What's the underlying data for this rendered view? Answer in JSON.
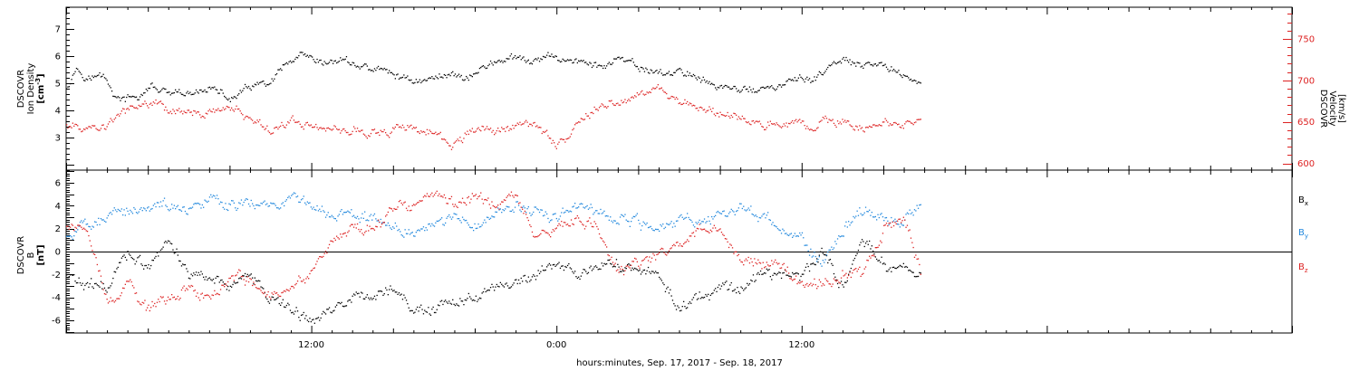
{
  "chart_data": [
    {
      "type": "scatter",
      "panel": "plasma",
      "left_axis": {
        "label_lines": [
          "DSCOVR",
          "Ion Density"
        ],
        "unit_base": "[cm",
        "unit_sup": "-3",
        "unit_end": "]",
        "ylim": [
          1.8,
          7.8
        ],
        "ticks": [
          "3",
          "4",
          "5",
          "6",
          "7"
        ],
        "color": "#000000"
      },
      "right_axis": {
        "label_lines": [
          "DSCOVR",
          "Velocity",
          "[km/s]"
        ],
        "ylim": [
          592,
          788
        ],
        "ticks": [
          "600",
          "650",
          "700",
          "750"
        ],
        "color": "#dd2222"
      },
      "series": [
        {
          "axis": "left",
          "color": "#000000",
          "knots": [
            [
              0,
              4.9
            ],
            [
              0.5,
              5.6
            ],
            [
              1,
              5.2
            ],
            [
              1.8,
              5.3
            ],
            [
              2.5,
              4.4
            ],
            [
              3.5,
              4.5
            ],
            [
              4.2,
              4.9
            ],
            [
              5,
              4.6
            ],
            [
              6.2,
              4.6
            ],
            [
              7,
              4.9
            ],
            [
              8,
              4.4
            ],
            [
              9,
              4.9
            ],
            [
              10,
              5
            ],
            [
              10.6,
              5.6
            ],
            [
              11.5,
              6.0
            ],
            [
              12.5,
              5.7
            ],
            [
              13.5,
              5.9
            ],
            [
              14.5,
              5.6
            ],
            [
              15.5,
              5.5
            ],
            [
              16.5,
              5.2
            ],
            [
              17.5,
              5.1
            ],
            [
              18.8,
              5.4
            ],
            [
              19.6,
              5.2
            ],
            [
              20.4,
              5.6
            ],
            [
              21.3,
              5.9
            ],
            [
              22,
              5.9
            ],
            [
              23,
              5.8
            ],
            [
              23.5,
              6.0
            ],
            [
              24.5,
              5.9
            ],
            [
              25.3,
              5.8
            ],
            [
              26,
              5.6
            ],
            [
              27,
              5.9
            ],
            [
              28,
              5.6
            ],
            [
              29,
              5.4
            ],
            [
              30.5,
              5.4
            ],
            [
              31.5,
              5.0
            ],
            [
              32.5,
              4.8
            ],
            [
              33.5,
              4.8
            ],
            [
              34.5,
              4.8
            ],
            [
              35.5,
              5.1
            ],
            [
              36.5,
              5.2
            ],
            [
              37,
              5.4
            ],
            [
              38,
              5.9
            ],
            [
              39,
              5.6
            ],
            [
              40,
              5.7
            ],
            [
              41,
              5.3
            ],
            [
              41.8,
              5.0
            ]
          ]
        },
        {
          "axis": "right",
          "color": "#dd2222",
          "knots": [
            [
              0,
              648
            ],
            [
              0.5,
              644
            ],
            [
              1,
              644
            ],
            [
              2,
              644
            ],
            [
              2.5,
              660
            ],
            [
              3.5,
              672
            ],
            [
              4,
              668
            ],
            [
              4.5,
              676
            ],
            [
              5,
              664
            ],
            [
              6.2,
              664
            ],
            [
              7,
              660
            ],
            [
              8,
              670
            ],
            [
              8.8,
              658
            ],
            [
              10,
              640
            ],
            [
              11,
              652
            ],
            [
              12,
              646
            ],
            [
              13,
              642
            ],
            [
              14,
              640
            ],
            [
              15,
              638
            ],
            [
              16,
              640
            ],
            [
              16.5,
              645
            ],
            [
              17.5,
              640
            ],
            [
              18,
              634
            ],
            [
              18.8,
              623
            ],
            [
              19.5,
              634
            ],
            [
              20.5,
              642
            ],
            [
              21.5,
              642
            ],
            [
              22.5,
              650
            ],
            [
              23,
              646
            ],
            [
              23.5,
              636
            ],
            [
              24,
              624
            ],
            [
              24.8,
              640
            ],
            [
              25.5,
              660
            ],
            [
              26,
              668
            ],
            [
              27,
              674
            ],
            [
              28,
              688
            ],
            [
              29,
              690
            ],
            [
              29.5,
              680
            ],
            [
              30,
              672
            ],
            [
              31,
              666
            ],
            [
              32,
              660
            ],
            [
              33,
              654
            ],
            [
              34,
              644
            ],
            [
              35,
              646
            ],
            [
              36,
              652
            ],
            [
              36.5,
              638
            ],
            [
              37,
              654
            ],
            [
              38,
              650
            ],
            [
              39,
              646
            ],
            [
              40,
              650
            ],
            [
              41,
              648
            ],
            [
              41.8,
              654
            ]
          ]
        }
      ]
    },
    {
      "type": "scatter",
      "panel": "magnetic-field",
      "left_axis": {
        "label_lines": [
          "DSCOVR",
          "B"
        ],
        "unit_base": "[nT",
        "unit_sup": "",
        "unit_end": "]",
        "ylim": [
          -7.1,
          7.1
        ],
        "ticks": [
          "-6",
          "-4",
          "-2",
          "0",
          "2",
          "4",
          "6"
        ],
        "color": "#000000"
      },
      "zero_line": 0,
      "series": [
        {
          "name": "B",
          "sub": "x",
          "color": "#000000",
          "knots": [
            [
              0,
              -2
            ],
            [
              1,
              -3
            ],
            [
              2,
              -3
            ],
            [
              3,
              0
            ],
            [
              4,
              -1.5
            ],
            [
              5,
              1
            ],
            [
              6,
              -2
            ],
            [
              7,
              -2
            ],
            [
              8,
              -3
            ],
            [
              9,
              -2
            ],
            [
              10,
              -4
            ],
            [
              11,
              -5
            ],
            [
              12,
              -6
            ],
            [
              13,
              -5
            ],
            [
              14,
              -4
            ],
            [
              15,
              -4
            ],
            [
              16,
              -3
            ],
            [
              17,
              -5
            ],
            [
              18,
              -5
            ],
            [
              19,
              -4.5
            ],
            [
              20,
              -4
            ],
            [
              21,
              -3
            ],
            [
              22,
              -3
            ],
            [
              23,
              -2
            ],
            [
              24,
              -1
            ],
            [
              25,
              -2
            ],
            [
              26,
              -1
            ],
            [
              27,
              -1
            ],
            [
              28,
              -2
            ],
            [
              29,
              -2
            ],
            [
              30,
              -5
            ],
            [
              31,
              -4
            ],
            [
              32,
              -3
            ],
            [
              33,
              -3
            ],
            [
              34,
              -2
            ],
            [
              35,
              -2
            ],
            [
              36,
              -2
            ],
            [
              37,
              0
            ],
            [
              38,
              -3
            ],
            [
              39,
              1
            ],
            [
              40,
              -1
            ],
            [
              41,
              -1.5
            ],
            [
              41.8,
              -2
            ]
          ]
        },
        {
          "name": "B",
          "sub": "y",
          "color": "#2288dd",
          "knots": [
            [
              0,
              1.5
            ],
            [
              1,
              2.3
            ],
            [
              2,
              3.2
            ],
            [
              3,
              3.6
            ],
            [
              4,
              4.0
            ],
            [
              5,
              4.2
            ],
            [
              6,
              3.5
            ],
            [
              7,
              4.5
            ],
            [
              8,
              4.2
            ],
            [
              9,
              4.3
            ],
            [
              10,
              4.2
            ],
            [
              11,
              4.5
            ],
            [
              12,
              4.1
            ],
            [
              13,
              3.5
            ],
            [
              14,
              3.2
            ],
            [
              15,
              3
            ],
            [
              16,
              2
            ],
            [
              17,
              1.5
            ],
            [
              18,
              2.5
            ],
            [
              19,
              3
            ],
            [
              20,
              2
            ],
            [
              21,
              3.5
            ],
            [
              22,
              4
            ],
            [
              23,
              3.5
            ],
            [
              24,
              3
            ],
            [
              25,
              4
            ],
            [
              26,
              3.5
            ],
            [
              27,
              3
            ],
            [
              28,
              2.5
            ],
            [
              29,
              2
            ],
            [
              30,
              3
            ],
            [
              31,
              2.5
            ],
            [
              32,
              3.5
            ],
            [
              33,
              4
            ],
            [
              34,
              3
            ],
            [
              35,
              2
            ],
            [
              36,
              1
            ],
            [
              37,
              -1
            ],
            [
              38,
              2
            ],
            [
              39,
              4
            ],
            [
              40,
              3
            ],
            [
              41,
              3
            ],
            [
              41.8,
              4
            ]
          ]
        },
        {
          "name": "B",
          "sub": "z",
          "color": "#dd2222",
          "knots": [
            [
              0,
              2.5
            ],
            [
              1,
              2
            ],
            [
              2,
              -4
            ],
            [
              3,
              -3
            ],
            [
              4,
              -5
            ],
            [
              5,
              -4
            ],
            [
              6,
              -3
            ],
            [
              7,
              -4
            ],
            [
              8,
              -2
            ],
            [
              9,
              -2.5
            ],
            [
              10,
              -4
            ],
            [
              11,
              -3
            ],
            [
              12,
              -2
            ],
            [
              13,
              1
            ],
            [
              14,
              2
            ],
            [
              15,
              2
            ],
            [
              16,
              4
            ],
            [
              17,
              4
            ],
            [
              18,
              5
            ],
            [
              19,
              4
            ],
            [
              20,
              5
            ],
            [
              21,
              4
            ],
            [
              22,
              5
            ],
            [
              23,
              1
            ],
            [
              24,
              2
            ],
            [
              25,
              3
            ],
            [
              26,
              2
            ],
            [
              27,
              -2
            ],
            [
              28,
              -1
            ],
            [
              29,
              0
            ],
            [
              30,
              0.5
            ],
            [
              31,
              2
            ],
            [
              32,
              2
            ],
            [
              33,
              -1
            ],
            [
              34,
              -1
            ],
            [
              35,
              -1
            ],
            [
              36,
              -3
            ],
            [
              37,
              -3
            ],
            [
              38,
              -2
            ],
            [
              39,
              -2
            ],
            [
              40,
              2
            ],
            [
              41,
              3
            ],
            [
              41.8,
              -2
            ]
          ]
        }
      ],
      "legend": {
        "placement": "right",
        "entries": [
          {
            "text": "B",
            "sub": "x",
            "color": "#000000"
          },
          {
            "text": "B",
            "sub": "y",
            "color": "#2288dd"
          },
          {
            "text": "B",
            "sub": "z",
            "color": "#dd2222"
          }
        ]
      }
    }
  ],
  "x_axis": {
    "label": "hours:minutes, Sep. 17, 2017 - Sep. 18, 2017",
    "range_hours": [
      0,
      60
    ],
    "data_end_hours": 41.8,
    "major_ticks": [
      {
        "hour": 12,
        "label": "12:00"
      },
      {
        "hour": 24,
        "label": "0:00"
      },
      {
        "hour": 36,
        "label": "12:00"
      }
    ]
  }
}
